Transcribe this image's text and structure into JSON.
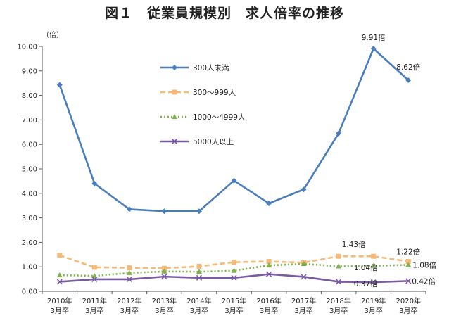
{
  "chart_data": {
    "type": "line",
    "title": "図１　従業員規模別　求人倍率の推移",
    "ylabel": "（倍）",
    "xlabel": "",
    "ylim": [
      0,
      10
    ],
    "yticks": [
      "0.00",
      "1.00",
      "2.00",
      "3.00",
      "4.00",
      "5.00",
      "6.00",
      "7.00",
      "8.00",
      "9.00",
      "10.00"
    ],
    "categories": [
      [
        "2010年",
        "3月卒"
      ],
      [
        "2011年",
        "3月卒"
      ],
      [
        "2012年",
        "3月卒"
      ],
      [
        "2013年",
        "3月卒"
      ],
      [
        "2014年",
        "3月卒"
      ],
      [
        "2015年",
        "3月卒"
      ],
      [
        "2016年",
        "3月卒"
      ],
      [
        "2017年",
        "3月卒"
      ],
      [
        "2018年",
        "3月卒"
      ],
      [
        "2019年",
        "3月卒"
      ],
      [
        "2020年",
        "3月卒"
      ]
    ],
    "grid": false,
    "legend_position": "top-left",
    "series": [
      {
        "name": "300人未満",
        "color": "#4a7ebb",
        "style": "solid",
        "marker": "diamond",
        "values": [
          8.43,
          4.4,
          3.35,
          3.27,
          3.27,
          4.52,
          3.59,
          4.16,
          6.45,
          9.91,
          8.62
        ]
      },
      {
        "name": "300～999人",
        "color": "#f5b97a",
        "style": "dashed",
        "marker": "square",
        "values": [
          1.47,
          0.98,
          0.96,
          0.94,
          1.02,
          1.19,
          1.22,
          1.17,
          1.43,
          1.43,
          1.22
        ]
      },
      {
        "name": "1000～4999人",
        "color": "#7fb24a",
        "style": "dotted",
        "marker": "triangle",
        "values": [
          0.66,
          0.63,
          0.75,
          0.81,
          0.8,
          0.84,
          1.06,
          1.12,
          1.02,
          1.04,
          1.08
        ]
      },
      {
        "name": "5000人以上",
        "color": "#7a5ba3",
        "style": "solid",
        "marker": "cross",
        "values": [
          0.39,
          0.49,
          0.49,
          0.6,
          0.55,
          0.55,
          0.7,
          0.59,
          0.39,
          0.37,
          0.42
        ]
      }
    ],
    "annotations": [
      {
        "text": "9.91倍",
        "series": 0,
        "index": 9
      },
      {
        "text": "8.62倍",
        "series": 0,
        "index": 10
      },
      {
        "text": "1.43倍",
        "series": 1,
        "index": 9
      },
      {
        "text": "1.22倍",
        "series": 1,
        "index": 10
      },
      {
        "text": "1.04倍",
        "series": 2,
        "index": 9
      },
      {
        "text": "1.08倍",
        "series": 2,
        "index": 10
      },
      {
        "text": "0.37倍",
        "series": 3,
        "index": 9
      },
      {
        "text": "0.42倍",
        "series": 3,
        "index": 10
      }
    ]
  }
}
